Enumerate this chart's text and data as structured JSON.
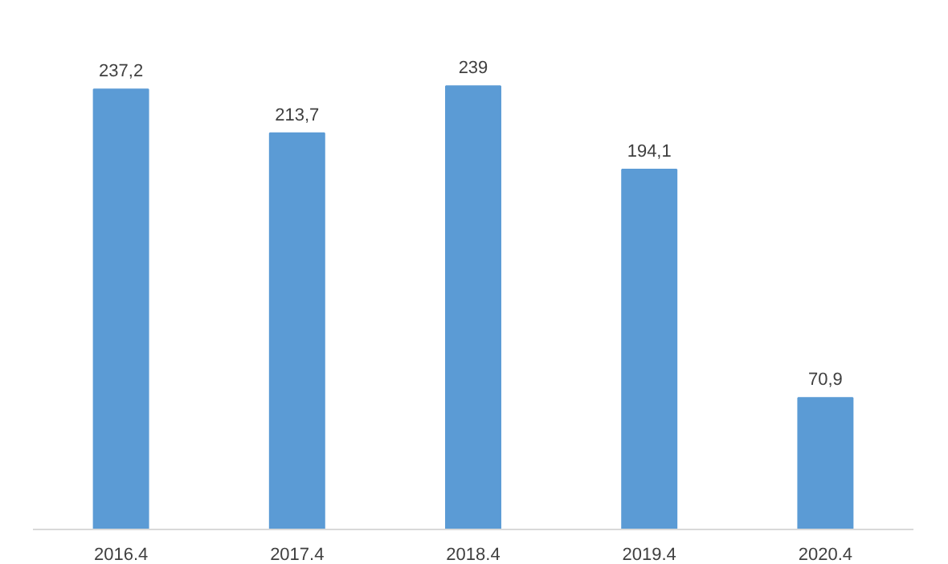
{
  "chart_data": {
    "type": "bar",
    "categories": [
      "2016.4",
      "2017.4",
      "2018.4",
      "2019.4",
      "2020.4"
    ],
    "values": [
      237.2,
      213.7,
      239,
      194.1,
      70.9
    ],
    "value_labels": [
      "237,2",
      "213,7",
      "239",
      "194,1",
      "70,9"
    ],
    "color": "#5b9bd5",
    "grid": false
  }
}
